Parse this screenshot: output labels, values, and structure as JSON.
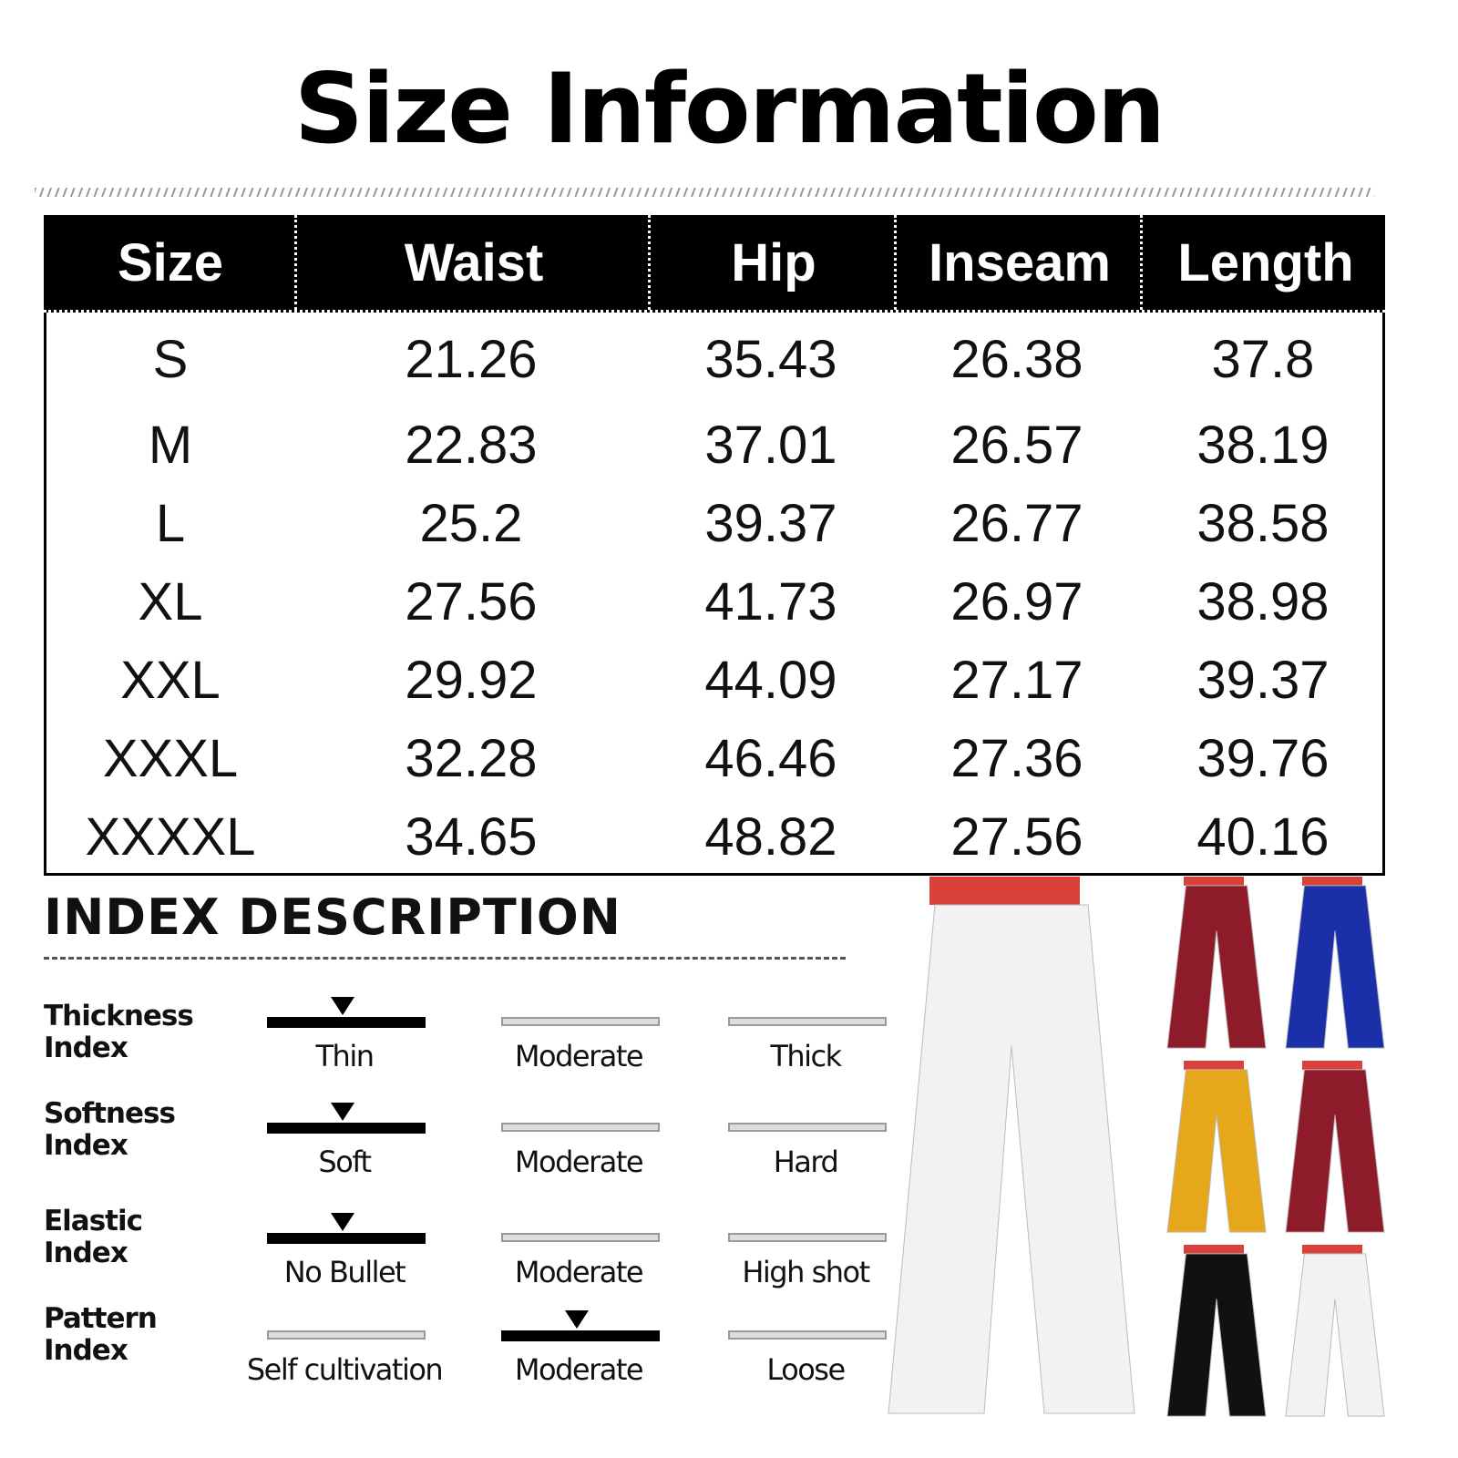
{
  "title": "Size Information",
  "table": {
    "headers": [
      "Size",
      "Waist",
      "Hip",
      "Inseam",
      "Length"
    ],
    "rows": [
      [
        "S",
        "21.26",
        "35.43",
        "26.38",
        "37.8"
      ],
      [
        "M",
        "22.83",
        "37.01",
        "26.57",
        "38.19"
      ],
      [
        "L",
        "25.2",
        "39.37",
        "26.77",
        "38.58"
      ],
      [
        "XL",
        "27.56",
        "41.73",
        "26.97",
        "38.98"
      ],
      [
        "XXL",
        "29.92",
        "44.09",
        "27.17",
        "39.37"
      ],
      [
        "XXXL",
        "32.28",
        "46.46",
        "27.36",
        "39.76"
      ],
      [
        "XXXXL",
        "34.65",
        "48.82",
        "27.56",
        "40.16"
      ]
    ]
  },
  "index": {
    "title": "INDEX DESCRIPTION",
    "rows": [
      {
        "label1": "Thickness",
        "label2": "Index",
        "options": [
          "Thin",
          "Moderate",
          "Thick"
        ],
        "selected": 0
      },
      {
        "label1": "Softness",
        "label2": "Index",
        "options": [
          "Soft",
          "Moderate",
          "Hard"
        ],
        "selected": 0
      },
      {
        "label1": "Elastic",
        "label2": "Index",
        "options": [
          "No Bullet",
          "Moderate",
          "High shot"
        ],
        "selected": 0
      },
      {
        "label1": "Pattern",
        "label2": "Index",
        "options": [
          "Self cultivation",
          "Moderate",
          "Loose"
        ],
        "selected": 1
      }
    ]
  },
  "product_colors": [
    "#f2f2f2",
    "#8e1b2a",
    "#1a2fa8",
    "#e6a81a",
    "#8e1b2a",
    "#111111",
    "#f2f2f2"
  ]
}
